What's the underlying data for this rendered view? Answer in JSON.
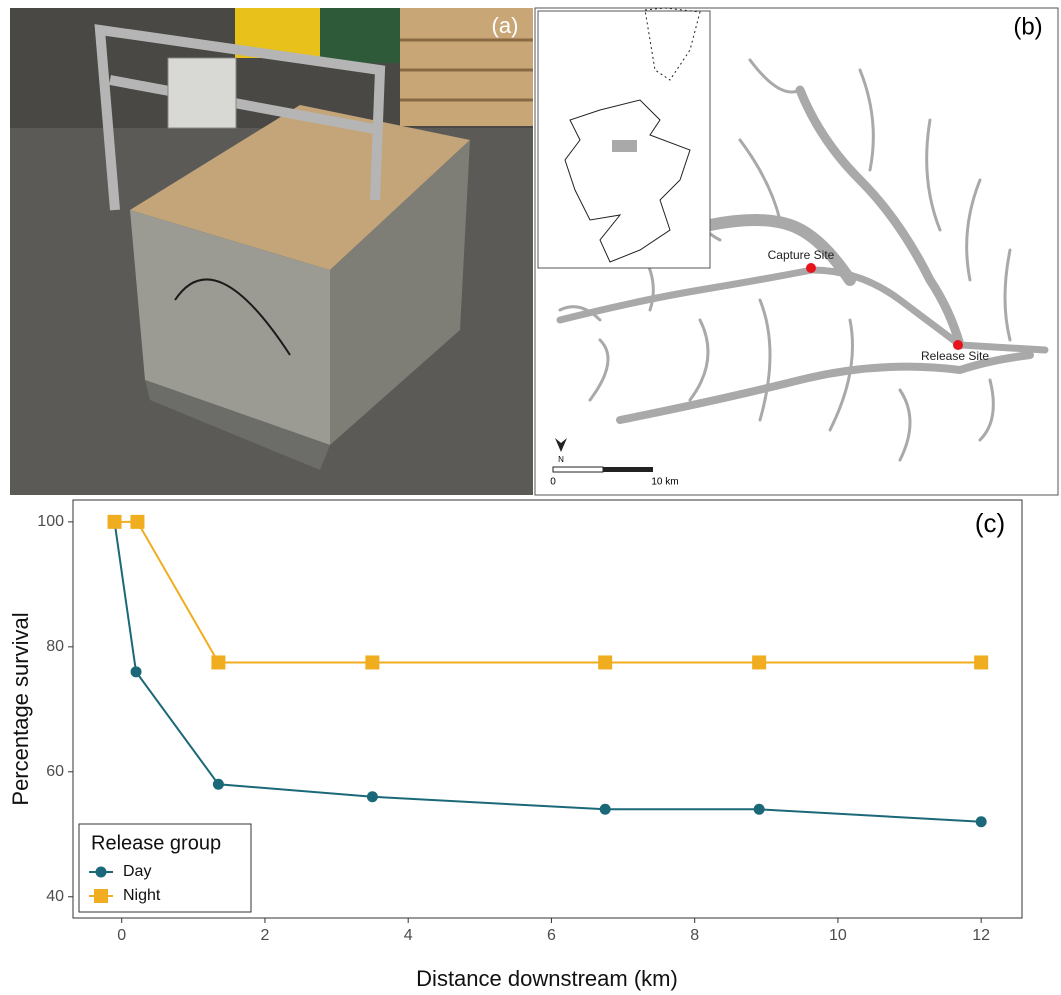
{
  "photo_panel": {
    "label": "(a)"
  },
  "map_panel": {
    "label": "(b)",
    "capture_label": "Capture Site",
    "release_label": "Release Site",
    "north_label": "N",
    "scale_start": "0",
    "scale_end": "10 km"
  },
  "chart_data": {
    "type": "line",
    "panel_label": "(c)",
    "x_label": "Distance downstream (km)",
    "y_label": "Percentage survival",
    "xlim": [
      -0.68,
      12.57
    ],
    "ylim": [
      36.6,
      103.5
    ],
    "xticks": [
      0,
      2,
      4,
      6,
      8,
      10,
      12
    ],
    "yticks": [
      40,
      60,
      80,
      100
    ],
    "grid": false,
    "legend_title": "Release group",
    "legend_position": "bottom-left",
    "series": [
      {
        "name": "Day",
        "color": "#1b6878",
        "marker": "circle",
        "x": [
          -0.1,
          0.2,
          1.35,
          3.5,
          6.75,
          8.9,
          12
        ],
        "values": [
          100,
          76,
          58,
          56,
          54,
          54,
          52
        ]
      },
      {
        "name": "Night",
        "color": "#f0ad1f",
        "marker": "square",
        "x": [
          -0.1,
          0.22,
          1.35,
          3.5,
          6.75,
          8.9,
          12
        ],
        "values": [
          100,
          100,
          77.5,
          77.5,
          77.5,
          77.5,
          77.5
        ]
      }
    ]
  }
}
